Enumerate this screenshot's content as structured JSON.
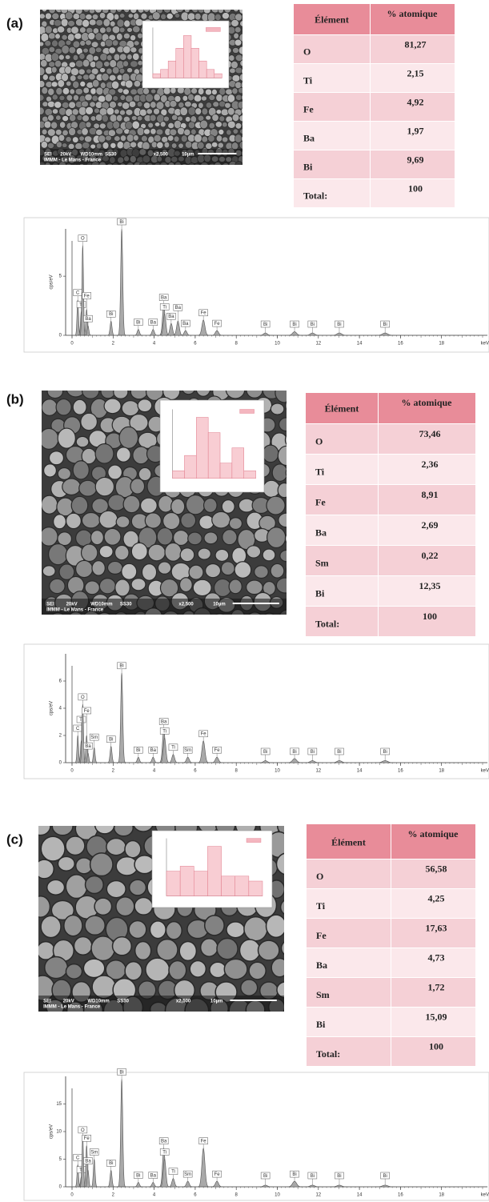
{
  "panels": [
    {
      "label": "(a)",
      "sem": {
        "caption": [
          "SEI",
          "20kV",
          "WD10mm",
          "SS30",
          "x2,500",
          "10µm"
        ],
        "lab": "IMMM - Le Mans - France",
        "histogram": [
          1,
          2,
          4,
          7,
          10,
          7,
          4,
          2,
          1
        ]
      },
      "table": {
        "header": [
          "Élément",
          "% atomique"
        ],
        "rows": [
          [
            "O",
            "81,27"
          ],
          [
            "Ti",
            "2,15"
          ],
          [
            "Fe",
            "4,92"
          ],
          [
            "Ba",
            "1,97"
          ],
          [
            "Bi",
            "9,69"
          ],
          [
            "Total:",
            "100"
          ]
        ]
      },
      "spectrum": {
        "y_label": "cps/eV",
        "x_unit": "keV",
        "xlim": [
          0,
          20
        ],
        "xticks": [
          0,
          2,
          4,
          6,
          8,
          10,
          12,
          14,
          16,
          18
        ],
        "ylim": [
          0,
          9
        ],
        "yticks": [
          0,
          5
        ],
        "peaks": [
          {
            "label": "C",
            "energy": 0.28,
            "height": 3
          },
          {
            "label": "Ti",
            "energy": 0.45,
            "height": 2
          },
          {
            "label": "O",
            "energy": 0.52,
            "height": 7.6
          },
          {
            "label": "Fe",
            "energy": 0.71,
            "height": 2.2
          },
          {
            "label": "Ba",
            "energy": 0.78,
            "height": 0.8
          },
          {
            "label": "Bi",
            "energy": 1.9,
            "height": 1.2
          },
          {
            "label": "Bi",
            "energy": 2.42,
            "height": 9
          },
          {
            "label": "Bi",
            "energy": 3.23,
            "height": 0.5
          },
          {
            "label": "Ba",
            "energy": 3.95,
            "height": 0.5
          },
          {
            "label": "Ba",
            "energy": 4.47,
            "height": 2.6
          },
          {
            "label": "Ti",
            "energy": 4.51,
            "height": 1.8
          },
          {
            "label": "Ba",
            "energy": 4.83,
            "height": 1
          },
          {
            "label": "Ba",
            "energy": 5.16,
            "height": 1.2
          },
          {
            "label": "Ba",
            "energy": 5.53,
            "height": 0.4
          },
          {
            "label": "Fe",
            "energy": 6.4,
            "height": 1.3
          },
          {
            "label": "Fe",
            "energy": 7.06,
            "height": 0.4
          },
          {
            "label": "Bi",
            "energy": 9.42,
            "height": 0.2
          },
          {
            "label": "Bi",
            "energy": 10.84,
            "height": 0.3
          },
          {
            "label": "Bi",
            "energy": 11.71,
            "height": 0.2
          },
          {
            "label": "Bi",
            "energy": 13.02,
            "height": 0.2
          },
          {
            "label": "Bi",
            "energy": 15.25,
            "height": 0.2
          }
        ]
      }
    },
    {
      "label": "(b)",
      "sem": {
        "caption": [
          "SEI",
          "20kV",
          "WD10mm",
          "SS30",
          "x2,500",
          "10µm"
        ],
        "lab": "IMMM - Le Mans - France",
        "histogram": [
          1,
          3,
          8,
          6,
          2,
          4,
          1
        ]
      },
      "table": {
        "header": [
          "Élément",
          "% atomique"
        ],
        "rows": [
          [
            "O",
            "73,46"
          ],
          [
            "Ti",
            "2,36"
          ],
          [
            "Fe",
            "8,91"
          ],
          [
            "Ba",
            "2,69"
          ],
          [
            "Sm",
            "0,22"
          ],
          [
            "Bi",
            "12,35"
          ],
          [
            "Total:",
            "100"
          ]
        ]
      },
      "spectrum": {
        "y_label": "cps/eV",
        "x_unit": "keV",
        "xlim": [
          0,
          20
        ],
        "xticks": [
          0,
          2,
          4,
          6,
          8,
          10,
          12,
          14,
          16,
          18
        ],
        "ylim": [
          0,
          8
        ],
        "yticks": [
          0,
          2,
          4,
          6
        ],
        "peaks": [
          {
            "label": "C",
            "energy": 0.28,
            "height": 2
          },
          {
            "label": "Ti",
            "energy": 0.45,
            "height": 1.6
          },
          {
            "label": "O",
            "energy": 0.52,
            "height": 4.3
          },
          {
            "label": "Fe",
            "energy": 0.71,
            "height": 2
          },
          {
            "label": "Ba",
            "energy": 0.78,
            "height": 0.7
          },
          {
            "label": "Sm",
            "energy": 1.08,
            "height": 1.1
          },
          {
            "label": "Bi",
            "energy": 1.9,
            "height": 1.2
          },
          {
            "label": "Bi",
            "energy": 2.42,
            "height": 6.6
          },
          {
            "label": "Bi",
            "energy": 3.23,
            "height": 0.4
          },
          {
            "label": "Ba",
            "energy": 3.95,
            "height": 0.4
          },
          {
            "label": "Ba",
            "energy": 4.47,
            "height": 2.5
          },
          {
            "label": "Ti",
            "energy": 4.51,
            "height": 1.8
          },
          {
            "label": "Ti",
            "energy": 4.93,
            "height": 0.6
          },
          {
            "label": "Sm",
            "energy": 5.64,
            "height": 0.4
          },
          {
            "label": "Fe",
            "energy": 6.4,
            "height": 1.6
          },
          {
            "label": "Fe",
            "energy": 7.06,
            "height": 0.4
          },
          {
            "label": "Bi",
            "energy": 9.42,
            "height": 0.15
          },
          {
            "label": "Bi",
            "energy": 10.84,
            "height": 0.3
          },
          {
            "label": "Bi",
            "energy": 11.71,
            "height": 0.15
          },
          {
            "label": "Bi",
            "energy": 13.02,
            "height": 0.15
          },
          {
            "label": "Bi",
            "energy": 15.25,
            "height": 0.15
          }
        ]
      }
    },
    {
      "label": "(c)",
      "sem": {
        "caption": [
          "SEI",
          "20kV",
          "WD10mm",
          "SS30",
          "x2,500",
          "10µm"
        ],
        "lab": "IMMM - Le Mans - France",
        "histogram": [
          5,
          6,
          5,
          10,
          4,
          4,
          3
        ]
      },
      "table": {
        "header": [
          "Élément",
          "% atomique"
        ],
        "rows": [
          [
            "O",
            "56,58"
          ],
          [
            "Ti",
            "4,25"
          ],
          [
            "Fe",
            "17,63"
          ],
          [
            "Ba",
            "4,73"
          ],
          [
            "Sm",
            "1,72"
          ],
          [
            "Bi",
            "15,09"
          ],
          [
            "Total:",
            "100"
          ]
        ]
      },
      "spectrum": {
        "y_label": "cps/eV",
        "x_unit": "keV",
        "xlim": [
          0,
          20
        ],
        "xticks": [
          0,
          2,
          4,
          6,
          8,
          10,
          12,
          14,
          16,
          18
        ],
        "ylim": [
          0,
          20
        ],
        "yticks": [
          0,
          5,
          10,
          15
        ],
        "peaks": [
          {
            "label": "C",
            "energy": 0.28,
            "height": 4
          },
          {
            "label": "Ti",
            "energy": 0.45,
            "height": 1.8
          },
          {
            "label": "O",
            "energy": 0.52,
            "height": 9
          },
          {
            "label": "Fe",
            "energy": 0.71,
            "height": 7.5
          },
          {
            "label": "Ba",
            "energy": 0.78,
            "height": 3
          },
          {
            "label": "Sm",
            "energy": 1.08,
            "height": 5
          },
          {
            "label": "Bi",
            "energy": 1.9,
            "height": 3
          },
          {
            "label": "Bi",
            "energy": 2.42,
            "height": 19.5
          },
          {
            "label": "Bi",
            "energy": 3.23,
            "height": 0.8
          },
          {
            "label": "Ba",
            "energy": 3.95,
            "height": 0.8
          },
          {
            "label": "Ba",
            "energy": 4.47,
            "height": 7
          },
          {
            "label": "Ti",
            "energy": 4.51,
            "height": 5
          },
          {
            "label": "Ti",
            "energy": 4.93,
            "height": 1.5
          },
          {
            "label": "Sm",
            "energy": 5.64,
            "height": 1
          },
          {
            "label": "Fe",
            "energy": 6.4,
            "height": 7
          },
          {
            "label": "Fe",
            "energy": 7.06,
            "height": 1
          },
          {
            "label": "Bi",
            "energy": 9.42,
            "height": 0.3
          },
          {
            "label": "Bi",
            "energy": 10.84,
            "height": 1
          },
          {
            "label": "Bi",
            "energy": 11.71,
            "height": 0.3
          },
          {
            "label": "Bi",
            "energy": 13.02,
            "height": 0.3
          },
          {
            "label": "Bi",
            "energy": 15.25,
            "height": 0.3
          }
        ]
      }
    }
  ]
}
